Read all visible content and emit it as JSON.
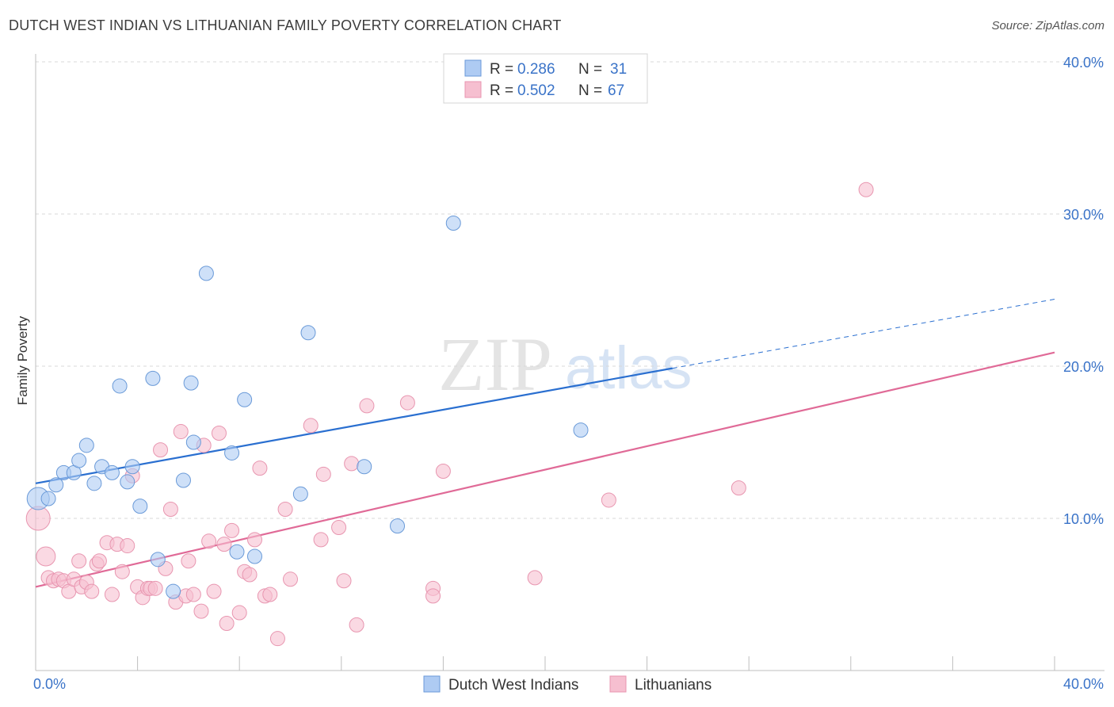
{
  "header": {
    "title": "DUTCH WEST INDIAN VS LITHUANIAN FAMILY POVERTY CORRELATION CHART",
    "source": "Source: ZipAtlas.com"
  },
  "watermark": {
    "zip": "ZIP",
    "atlas": "atlas"
  },
  "colors": {
    "blue_fill": "#aecbf3",
    "blue_stroke": "#6a9ad8",
    "blue_line": "#2a6fd0",
    "pink_fill": "#f6bfd0",
    "pink_stroke": "#e896b0",
    "pink_line": "#e06a97",
    "grid": "#d8d8d8",
    "tick_text": "#3a73c8"
  },
  "legend": {
    "rows": [
      {
        "r_label": "R = ",
        "r_value": "0.286",
        "n_label": "N = ",
        "n_value": "31"
      },
      {
        "r_label": "R = ",
        "r_value": "0.502",
        "n_label": "N = ",
        "n_value": "67"
      }
    ]
  },
  "chart_data": {
    "type": "scatter",
    "title": "DUTCH WEST INDIAN VS LITHUANIAN FAMILY POVERTY CORRELATION CHART",
    "xlabel": "",
    "ylabel": "Family Poverty",
    "xlim": [
      0,
      40
    ],
    "ylim": [
      0,
      40
    ],
    "x_tick_labels": [
      "0.0%",
      "40.0%"
    ],
    "y_ticks": [
      10,
      20,
      30,
      40
    ],
    "y_tick_labels": [
      "10.0%",
      "20.0%",
      "30.0%",
      "40.0%"
    ],
    "grid": true,
    "legend_position": "top-center",
    "series": [
      {
        "name": "Dutch West Indians",
        "r": 0.286,
        "n": 31,
        "trend": {
          "x0": 0,
          "y0": 12.3,
          "x1": 40,
          "y1": 24.4,
          "solid_until_x": 25
        },
        "points": [
          [
            0.1,
            11.3,
            14
          ],
          [
            0.5,
            11.3,
            9
          ],
          [
            0.8,
            12.2,
            9
          ],
          [
            1.1,
            13.0,
            9
          ],
          [
            1.5,
            13.0,
            9
          ],
          [
            1.7,
            13.8,
            9
          ],
          [
            2.0,
            14.8,
            9
          ],
          [
            2.3,
            12.3,
            9
          ],
          [
            2.6,
            13.4,
            9
          ],
          [
            3.0,
            13.0,
            9
          ],
          [
            3.3,
            18.7,
            9
          ],
          [
            3.6,
            12.4,
            9
          ],
          [
            3.8,
            13.4,
            9
          ],
          [
            4.1,
            10.8,
            9
          ],
          [
            4.6,
            19.2,
            9
          ],
          [
            4.8,
            7.3,
            9
          ],
          [
            5.4,
            5.2,
            9
          ],
          [
            5.8,
            12.5,
            9
          ],
          [
            6.1,
            18.9,
            9
          ],
          [
            6.2,
            15.0,
            9
          ],
          [
            6.7,
            26.1,
            9
          ],
          [
            7.7,
            14.3,
            9
          ],
          [
            7.9,
            7.8,
            9
          ],
          [
            8.2,
            17.8,
            9
          ],
          [
            8.6,
            7.5,
            9
          ],
          [
            10.4,
            11.6,
            9
          ],
          [
            10.7,
            22.2,
            9
          ],
          [
            12.9,
            13.4,
            9
          ],
          [
            14.2,
            9.5,
            9
          ],
          [
            16.4,
            29.4,
            9
          ],
          [
            21.4,
            15.8,
            9
          ]
        ]
      },
      {
        "name": "Lithuanians",
        "r": 0.502,
        "n": 67,
        "trend": {
          "x0": 0,
          "y0": 5.5,
          "x1": 40,
          "y1": 20.9
        },
        "points": [
          [
            0.1,
            10.0,
            15
          ],
          [
            0.4,
            7.5,
            12
          ],
          [
            0.5,
            6.1,
            9
          ],
          [
            0.7,
            5.9,
            9
          ],
          [
            0.9,
            6.0,
            9
          ],
          [
            1.1,
            5.9,
            9
          ],
          [
            1.3,
            5.2,
            9
          ],
          [
            1.5,
            6.0,
            9
          ],
          [
            1.7,
            7.2,
            9
          ],
          [
            1.8,
            5.5,
            9
          ],
          [
            2.0,
            5.8,
            9
          ],
          [
            2.2,
            5.2,
            9
          ],
          [
            2.4,
            7.0,
            9
          ],
          [
            2.5,
            7.2,
            9
          ],
          [
            2.8,
            8.4,
            9
          ],
          [
            3.0,
            5.0,
            9
          ],
          [
            3.2,
            8.3,
            9
          ],
          [
            3.4,
            6.5,
            9
          ],
          [
            3.6,
            8.2,
            9
          ],
          [
            3.8,
            12.8,
            9
          ],
          [
            4.0,
            5.5,
            9
          ],
          [
            4.2,
            4.8,
            9
          ],
          [
            4.4,
            5.4,
            9
          ],
          [
            4.5,
            5.4,
            9
          ],
          [
            4.7,
            5.4,
            9
          ],
          [
            4.9,
            14.5,
            9
          ],
          [
            5.1,
            6.7,
            9
          ],
          [
            5.3,
            10.6,
            9
          ],
          [
            5.5,
            4.5,
            9
          ],
          [
            5.7,
            15.7,
            9
          ],
          [
            5.9,
            4.9,
            9
          ],
          [
            6.0,
            7.2,
            9
          ],
          [
            6.2,
            5.0,
            9
          ],
          [
            6.5,
            3.9,
            9
          ],
          [
            6.6,
            14.8,
            9
          ],
          [
            6.8,
            8.5,
            9
          ],
          [
            7.0,
            5.2,
            9
          ],
          [
            7.2,
            15.6,
            9
          ],
          [
            7.4,
            8.3,
            9
          ],
          [
            7.5,
            3.1,
            9
          ],
          [
            7.7,
            9.2,
            9
          ],
          [
            8.0,
            3.8,
            9
          ],
          [
            8.2,
            6.5,
            9
          ],
          [
            8.4,
            6.3,
            9
          ],
          [
            8.6,
            8.6,
            9
          ],
          [
            8.8,
            13.3,
            9
          ],
          [
            9.0,
            4.9,
            9
          ],
          [
            9.2,
            5.0,
            9
          ],
          [
            9.5,
            2.1,
            9
          ],
          [
            9.8,
            10.6,
            9
          ],
          [
            10.0,
            6.0,
            9
          ],
          [
            10.8,
            16.1,
            9
          ],
          [
            11.2,
            8.6,
            9
          ],
          [
            11.3,
            12.9,
            9
          ],
          [
            11.9,
            9.4,
            9
          ],
          [
            12.1,
            5.9,
            9
          ],
          [
            12.4,
            13.6,
            9
          ],
          [
            12.6,
            3.0,
            9
          ],
          [
            13.0,
            17.4,
            9
          ],
          [
            14.6,
            17.6,
            9
          ],
          [
            15.6,
            5.4,
            9
          ],
          [
            15.6,
            4.9,
            9
          ],
          [
            16.0,
            13.1,
            9
          ],
          [
            19.6,
            6.1,
            9
          ],
          [
            22.5,
            11.2,
            9
          ],
          [
            27.6,
            12.0,
            9
          ],
          [
            32.6,
            31.6,
            9
          ]
        ]
      }
    ]
  }
}
